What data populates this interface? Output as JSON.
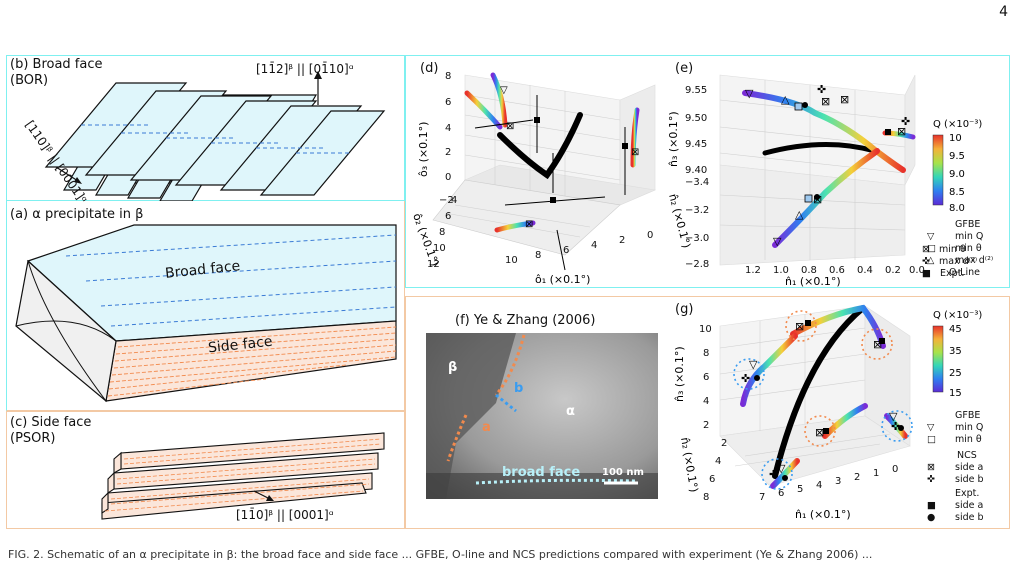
{
  "page_number": "4",
  "colors": {
    "cyan_frame": "#7ff0f0",
    "orange_frame": "#f3c9a4",
    "broad_face_fill": "#dff6fb",
    "side_face_fill": "#fbe6da",
    "orange_lines": "#f28a4d",
    "blue_lines": "#3a7bd5"
  },
  "panel_b": {
    "title": "(b) Broad face",
    "subtitle": "(BOR)",
    "label_normal": "[11̄2]ᵝ || [01̄10]ᵅ",
    "label_direction": "[110]ᵝ || [0001]ᵅ"
  },
  "panel_a": {
    "title": "(a) α precipitate in β",
    "broad_face": "Broad face",
    "side_face": "Side face"
  },
  "panel_c": {
    "title": "(c) Side face",
    "subtitle": "(PSOR)",
    "label_direction": "[11̄0]ᵝ || [0001]ᵅ"
  },
  "panel_d": {
    "label": "(d)",
    "zlabel": "ô₃ (×0.1°)",
    "ylabel": "ô₂ (×0.1°)",
    "xlabel": "ô₁ (×0.1°)",
    "z_ticks": [
      "8",
      "6",
      "4",
      "2",
      "0",
      "−2"
    ],
    "y_ticks": [
      "12",
      "10",
      "8",
      "6",
      "4"
    ],
    "x_ticks": [
      "10",
      "8",
      "6",
      "4",
      "2",
      "0"
    ]
  },
  "panel_e": {
    "label": "(e)",
    "zlabel": "n̂₃ (×0.1°)",
    "ylabel": "n̂₂ (×0.1°)",
    "xlabel": "n̂₁ (×0.1°)",
    "z_ticks": [
      "9.55",
      "9.50",
      "9.45",
      "9.40"
    ],
    "y_ticks": [
      "−3.4",
      "−3.2",
      "−3.0",
      "−2.8"
    ],
    "x_ticks": [
      "1.2",
      "1.0",
      "0.8",
      "0.6",
      "0.4",
      "0.2",
      "0.0"
    ],
    "colorbar_title": "Q (×10⁻³)",
    "colorbar_ticks": [
      "10",
      "9.5",
      "9.0",
      "8.5",
      "8.0"
    ],
    "legend": [
      {
        "group": "GFBE",
        "items": [
          "min Q",
          "min θ",
          "max d⁽²⁾"
        ]
      },
      {
        "group": "O-Line",
        "items": [
          "min θ",
          "max d⁽²⁾"
        ]
      },
      {
        "group": "",
        "items": [
          "Expt."
        ]
      }
    ]
  },
  "panel_f": {
    "title": "(f) Ye & Zhang (2006)",
    "beta": "β",
    "alpha": "α",
    "a": "a",
    "b": "b",
    "broad_face": "broad face",
    "scale": "100 nm"
  },
  "panel_g": {
    "label": "(g)",
    "zlabel": "n̂₃ (×0.1°)",
    "ylabel": "n̂₂ (×0.1°)",
    "xlabel": "n̂₁ (×0.1°)",
    "z_ticks": [
      "10",
      "8",
      "6",
      "4",
      "2"
    ],
    "y_ticks": [
      "2",
      "4",
      "6",
      "8"
    ],
    "x_ticks": [
      "7",
      "6",
      "5",
      "4",
      "3",
      "2",
      "1",
      "0"
    ],
    "colorbar_title": "Q (×10⁻³)",
    "colorbar_ticks": [
      "45",
      "35",
      "25",
      "15"
    ],
    "legend": [
      {
        "group": "GFBE",
        "items": [
          "min Q",
          "min θ"
        ]
      },
      {
        "group": "NCS",
        "items": [
          "side a",
          "side b"
        ]
      },
      {
        "group": "Expt.",
        "items": [
          "side a",
          "side b"
        ]
      }
    ]
  },
  "bottom_caption_partial": "FIG. 2. Schematic of an α precipitate in β: the broad face and side face ... GFBE, O-line and NCS predictions compared with experiment (Ye & Zhang 2006) ..."
}
